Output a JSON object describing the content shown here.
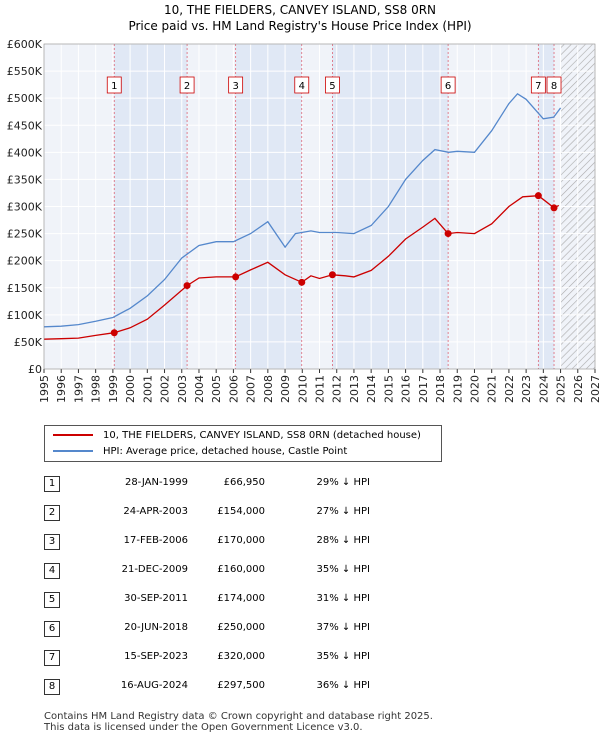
{
  "title": {
    "line1": "10, THE FIELDERS, CANVEY ISLAND, SS8 0RN",
    "line2": "Price paid vs. HM Land Registry's House Price Index (HPI)"
  },
  "chart_data": {
    "type": "line",
    "xlim": [
      1995,
      2027
    ],
    "ylim": [
      0,
      600000
    ],
    "y_ticks": [
      {
        "value": 0,
        "label": "£0"
      },
      {
        "value": 50000,
        "label": "£50K"
      },
      {
        "value": 100000,
        "label": "£100K"
      },
      {
        "value": 150000,
        "label": "£150K"
      },
      {
        "value": 200000,
        "label": "£200K"
      },
      {
        "value": 250000,
        "label": "£250K"
      },
      {
        "value": 300000,
        "label": "£300K"
      },
      {
        "value": 350000,
        "label": "£350K"
      },
      {
        "value": 400000,
        "label": "£400K"
      },
      {
        "value": 450000,
        "label": "£450K"
      },
      {
        "value": 500000,
        "label": "£500K"
      },
      {
        "value": 550000,
        "label": "£550K"
      },
      {
        "value": 600000,
        "label": "£600K"
      }
    ],
    "x_ticks": [
      "1995",
      "1996",
      "1997",
      "1998",
      "1999",
      "2000",
      "2001",
      "2002",
      "2003",
      "2004",
      "2005",
      "2006",
      "2007",
      "2008",
      "2009",
      "2010",
      "2011",
      "2012",
      "2013",
      "2014",
      "2015",
      "2016",
      "2017",
      "2018",
      "2019",
      "2020",
      "2021",
      "2022",
      "2023",
      "2024",
      "2025",
      "2026",
      "2027"
    ],
    "forecast_start": 2025.0,
    "series": [
      {
        "name": "10, THE FIELDERS, CANVEY ISLAND, SS8 0RN (detached house)",
        "color": "#cc0000",
        "points": [
          [
            1995.0,
            55000
          ],
          [
            1996.0,
            56000
          ],
          [
            1997.0,
            57000
          ],
          [
            1998.0,
            62000
          ],
          [
            1999.08,
            66950
          ],
          [
            2000.0,
            76000
          ],
          [
            2001.0,
            92000
          ],
          [
            2002.0,
            118000
          ],
          [
            2003.31,
            154000
          ],
          [
            2004.0,
            168000
          ],
          [
            2005.0,
            170000
          ],
          [
            2006.13,
            170000
          ],
          [
            2007.0,
            183000
          ],
          [
            2008.0,
            197000
          ],
          [
            2009.0,
            174000
          ],
          [
            2009.97,
            160000
          ],
          [
            2010.5,
            172000
          ],
          [
            2011.0,
            167000
          ],
          [
            2011.75,
            174000
          ],
          [
            2012.5,
            172000
          ],
          [
            2013.0,
            170000
          ],
          [
            2014.0,
            182000
          ],
          [
            2015.0,
            208000
          ],
          [
            2016.0,
            240000
          ],
          [
            2017.0,
            262000
          ],
          [
            2017.7,
            278000
          ],
          [
            2018.47,
            250000
          ],
          [
            2019.0,
            252000
          ],
          [
            2020.0,
            250000
          ],
          [
            2021.0,
            268000
          ],
          [
            2022.0,
            300000
          ],
          [
            2022.8,
            318000
          ],
          [
            2023.71,
            320000
          ],
          [
            2024.2,
            308000
          ],
          [
            2024.62,
            297500
          ],
          [
            2024.9,
            302000
          ]
        ]
      },
      {
        "name": "HPI: Average price, detached house, Castle Point",
        "color": "#5588cc",
        "points": [
          [
            1995.0,
            78000
          ],
          [
            1996.0,
            79000
          ],
          [
            1997.0,
            82000
          ],
          [
            1998.0,
            88000
          ],
          [
            1999.0,
            95000
          ],
          [
            2000.0,
            112000
          ],
          [
            2001.0,
            135000
          ],
          [
            2002.0,
            165000
          ],
          [
            2003.0,
            205000
          ],
          [
            2004.0,
            228000
          ],
          [
            2005.0,
            235000
          ],
          [
            2006.0,
            235000
          ],
          [
            2007.0,
            250000
          ],
          [
            2008.0,
            272000
          ],
          [
            2009.0,
            225000
          ],
          [
            2009.6,
            250000
          ],
          [
            2010.5,
            255000
          ],
          [
            2011.0,
            252000
          ],
          [
            2012.0,
            252000
          ],
          [
            2013.0,
            250000
          ],
          [
            2014.0,
            265000
          ],
          [
            2015.0,
            300000
          ],
          [
            2016.0,
            350000
          ],
          [
            2017.0,
            385000
          ],
          [
            2017.7,
            405000
          ],
          [
            2018.5,
            400000
          ],
          [
            2019.0,
            402000
          ],
          [
            2020.0,
            400000
          ],
          [
            2021.0,
            440000
          ],
          [
            2022.0,
            490000
          ],
          [
            2022.5,
            508000
          ],
          [
            2023.0,
            498000
          ],
          [
            2024.0,
            462000
          ],
          [
            2024.6,
            465000
          ],
          [
            2025.0,
            482000
          ]
        ]
      }
    ],
    "transactions": [
      {
        "id": "1",
        "label_box": "1",
        "year": 1999.08,
        "price": 66950,
        "date": "28-JAN-1999",
        "price_label": "£66,950",
        "hpi_note": "29% ↓ HPI"
      },
      {
        "id": "2",
        "label_box": "2",
        "year": 2003.31,
        "price": 154000,
        "date": "24-APR-2003",
        "price_label": "£154,000",
        "hpi_note": "27% ↓ HPI"
      },
      {
        "id": "3",
        "label_box": "3",
        "year": 2006.13,
        "price": 170000,
        "date": "17-FEB-2006",
        "price_label": "£170,000",
        "hpi_note": "28% ↓ HPI"
      },
      {
        "id": "4",
        "label_box": "4",
        "year": 2009.97,
        "price": 160000,
        "date": "21-DEC-2009",
        "price_label": "£160,000",
        "hpi_note": "35% ↓ HPI"
      },
      {
        "id": "5",
        "label_box": "5",
        "year": 2011.75,
        "price": 174000,
        "date": "30-SEP-2011",
        "price_label": "£174,000",
        "hpi_note": "31% ↓ HPI"
      },
      {
        "id": "6",
        "label_box": "6",
        "year": 2018.47,
        "price": 250000,
        "date": "20-JUN-2018",
        "price_label": "£250,000",
        "hpi_note": "37% ↓ HPI"
      },
      {
        "id": "7",
        "label_box": "7",
        "year": 2023.71,
        "price": 320000,
        "date": "15-SEP-2023",
        "price_label": "£320,000",
        "hpi_note": "35% ↓ HPI"
      },
      {
        "id": "8",
        "label_box": "8",
        "year": 2024.62,
        "price": 297500,
        "date": "16-AUG-2024",
        "price_label": "£297,500",
        "hpi_note": "36% ↓ HPI"
      }
    ]
  },
  "legend": {
    "property_label": "10, THE FIELDERS, CANVEY ISLAND, SS8 0RN (detached house)",
    "hpi_label": "HPI: Average price, detached house, Castle Point",
    "property_color": "#cc0000",
    "hpi_color": "#5588cc"
  },
  "footer": {
    "line1": "Contains HM Land Registry data © Crown copyright and database right 2025.",
    "line2": "This data is licensed under the Open Government Licence v3.0."
  }
}
